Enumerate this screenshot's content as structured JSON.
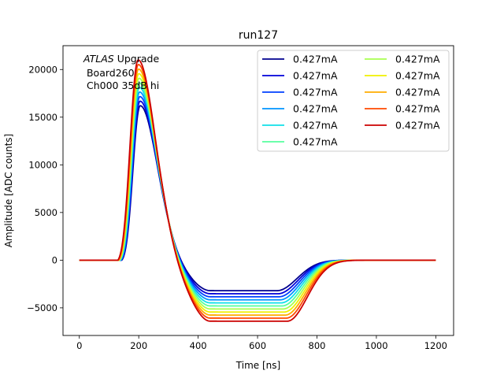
{
  "chart_data": {
    "type": "line",
    "title": "run127",
    "xlabel": "Time [ns]",
    "ylabel": "Amplitude [ADC counts]",
    "xlim": [
      -55,
      1260
    ],
    "ylim": [
      -7900,
      22500
    ],
    "xticks": [
      0,
      200,
      400,
      600,
      800,
      1000,
      1200
    ],
    "yticks": [
      -5000,
      0,
      5000,
      10000,
      15000,
      20000
    ],
    "grid": false,
    "legend": {
      "placement": "top-right",
      "columns": 2
    },
    "annotation": {
      "line1_italic": "ATLAS",
      "line1_rest": " Upgrade",
      "line2": " Board260",
      "line3": " Ch000 35dB hi"
    },
    "pulse_model": {
      "x_range": [
        0,
        1200
      ],
      "peak_min": 16200,
      "peak_max": 21000,
      "peak_time_min": 205,
      "peak_time_max": 198,
      "undershoot_min": -3200,
      "undershoot_max": -6400,
      "recovery_time_min": 665,
      "recovery_time_max": 700
    },
    "series": [
      {
        "name": "0.427mA",
        "color": "#00008f"
      },
      {
        "name": "0.427mA",
        "color": "#0000d9"
      },
      {
        "name": "0.427mA",
        "color": "#0040ff"
      },
      {
        "name": "0.427mA",
        "color": "#0095ff"
      },
      {
        "name": "0.427mA",
        "color": "#10e0e8"
      },
      {
        "name": "0.427mA",
        "color": "#56ff9f"
      },
      {
        "name": "0.427mA",
        "color": "#a8ff4f"
      },
      {
        "name": "0.427mA",
        "color": "#f0f000"
      },
      {
        "name": "0.427mA",
        "color": "#ffab00"
      },
      {
        "name": "0.427mA",
        "color": "#ff4a00"
      },
      {
        "name": "0.427mA",
        "color": "#cc0000"
      }
    ]
  }
}
